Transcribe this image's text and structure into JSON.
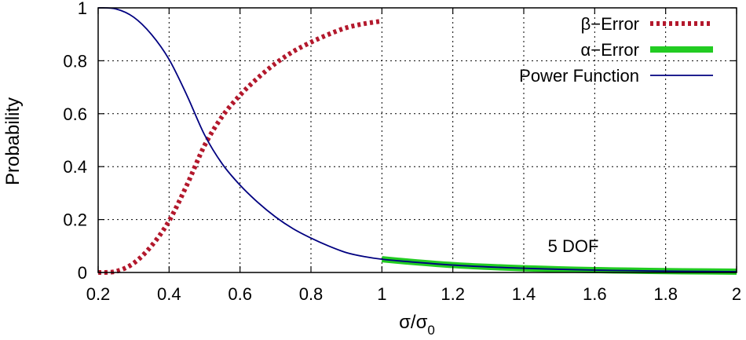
{
  "chart_data": {
    "type": "line",
    "xlabel": "σ/σ",
    "xlabel_sub": "0",
    "ylabel": "Probability",
    "xlim": [
      0.2,
      2
    ],
    "ylim": [
      0,
      1
    ],
    "grid": true,
    "legend_position": "top-right",
    "x_ticks": [
      "0.2",
      "0.4",
      "0.6",
      "0.8",
      "1",
      "1.2",
      "1.4",
      "1.6",
      "1.8",
      "2"
    ],
    "y_ticks": [
      "0",
      "0.2",
      "0.4",
      "0.6",
      "0.8",
      "1"
    ],
    "annotation": "5 DOF",
    "series": [
      {
        "name": "β−Error",
        "color": "#b3182c",
        "style": "dotted-thick",
        "x": [
          0.2,
          0.25,
          0.3,
          0.35,
          0.4,
          0.45,
          0.5,
          0.55,
          0.6,
          0.65,
          0.7,
          0.75,
          0.8,
          0.85,
          0.9,
          0.95,
          1.0
        ],
        "y": [
          0.0,
          0.004,
          0.035,
          0.1,
          0.195,
          0.33,
          0.48,
          0.59,
          0.67,
          0.735,
          0.79,
          0.835,
          0.87,
          0.9,
          0.925,
          0.94,
          0.95
        ]
      },
      {
        "name": "α−Error",
        "color": "#22cc22",
        "style": "solid-thick",
        "x": [
          1.0,
          1.1,
          1.2,
          1.3,
          1.4,
          1.5,
          1.6,
          1.7,
          1.8,
          1.9,
          2.0
        ],
        "y": [
          0.05,
          0.038,
          0.028,
          0.021,
          0.016,
          0.012,
          0.009,
          0.007,
          0.005,
          0.004,
          0.003
        ]
      },
      {
        "name": "Power Function",
        "color": "#000080",
        "style": "solid-thin",
        "x": [
          0.2,
          0.25,
          0.3,
          0.35,
          0.4,
          0.45,
          0.5,
          0.55,
          0.6,
          0.65,
          0.7,
          0.75,
          0.8,
          0.85,
          0.9,
          0.95,
          1.0,
          1.1,
          1.2,
          1.3,
          1.4,
          1.5,
          1.6,
          1.7,
          1.8,
          1.9,
          2.0
        ],
        "y": [
          1.0,
          0.996,
          0.965,
          0.9,
          0.805,
          0.67,
          0.52,
          0.41,
          0.33,
          0.265,
          0.21,
          0.165,
          0.13,
          0.1,
          0.075,
          0.06,
          0.05,
          0.038,
          0.028,
          0.021,
          0.016,
          0.012,
          0.009,
          0.007,
          0.005,
          0.004,
          0.003
        ]
      }
    ]
  }
}
